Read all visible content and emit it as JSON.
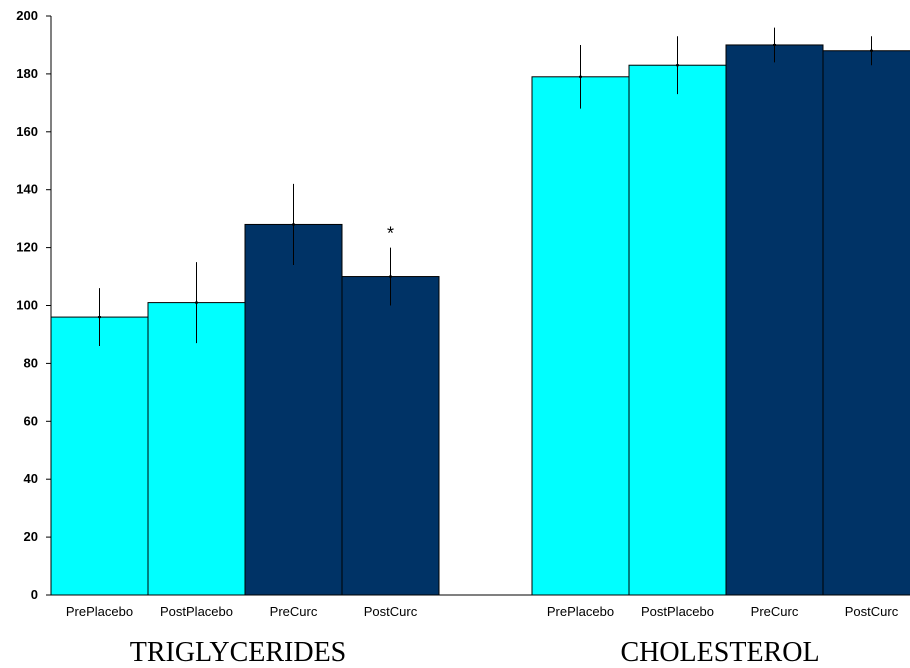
{
  "chart_data": {
    "type": "bar",
    "groups": [
      "TRIGLYCERIDES",
      "CHOLESTEROL"
    ],
    "categories": [
      "PrePlacebo",
      "PostPlacebo",
      "PreCurc",
      "PostCurc"
    ],
    "series": [
      {
        "group": "TRIGLYCERIDES",
        "values": [
          96,
          101,
          128,
          110
        ],
        "errors": [
          10,
          14,
          14,
          10
        ],
        "colors": [
          "#00ffff",
          "#00ffff",
          "#003366",
          "#003366"
        ]
      },
      {
        "group": "CHOLESTEROL",
        "values": [
          179,
          183,
          190,
          188
        ],
        "errors": [
          11,
          10,
          6,
          5
        ],
        "colors": [
          "#00ffff",
          "#00ffff",
          "#003366",
          "#003366"
        ]
      }
    ],
    "annotations": [
      {
        "group": "TRIGLYCERIDES",
        "category": "PostCurc",
        "text": "*"
      }
    ],
    "yticks": [
      0,
      20,
      40,
      60,
      80,
      100,
      120,
      140,
      160,
      180,
      200
    ],
    "ylim": [
      0,
      200
    ],
    "title": "",
    "xlabel": "",
    "ylabel": "",
    "grid": false,
    "legend": "none"
  },
  "colors": {
    "placebo": "#00ffff",
    "curcumin": "#003366"
  }
}
